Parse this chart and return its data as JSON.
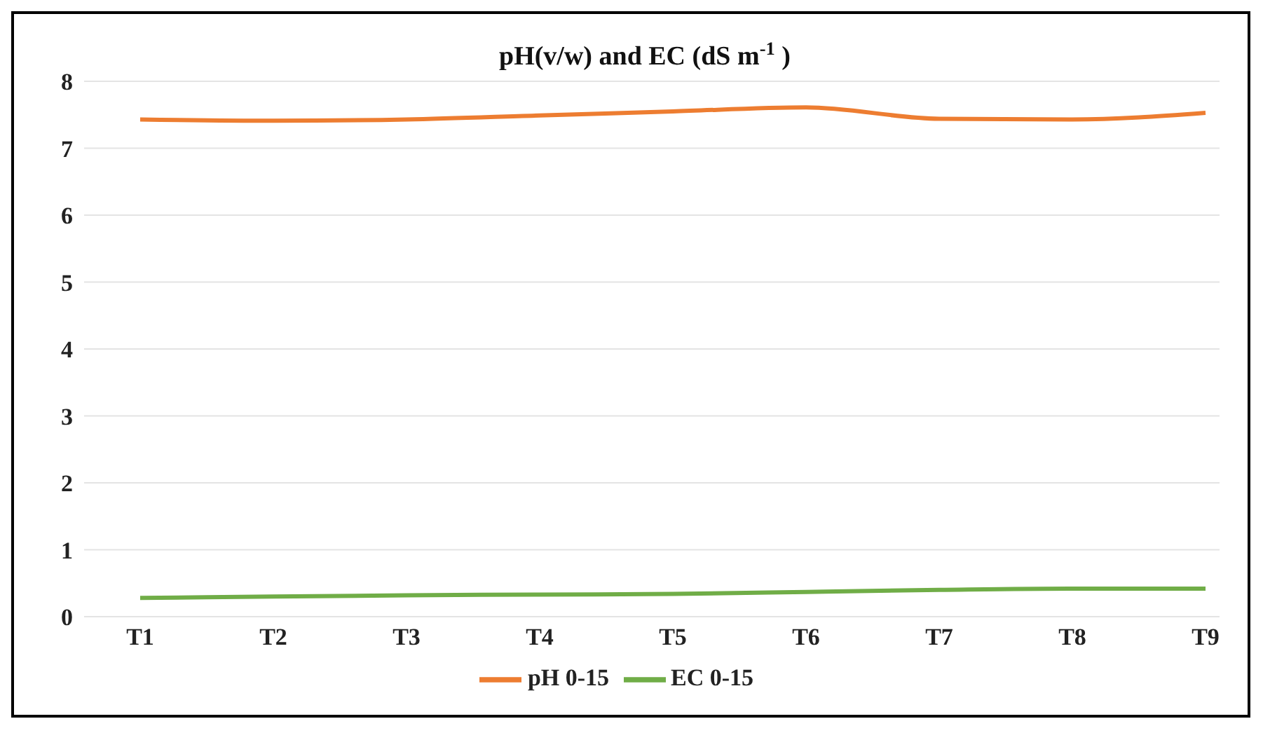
{
  "chart_data": {
    "type": "line",
    "title": "pH(v/w) and EC (dS m$^{-1}$)",
    "categories": [
      "T1",
      "T2",
      "T3",
      "T4",
      "T5",
      "T6",
      "T7",
      "T8",
      "T9"
    ],
    "series": [
      {
        "name": "pH 0-15",
        "color": "#ed7d31",
        "values": [
          7.43,
          7.41,
          7.43,
          7.49,
          7.55,
          7.61,
          7.44,
          7.43,
          7.53
        ]
      },
      {
        "name": "EC 0-15",
        "color": "#70ad47",
        "values": [
          0.28,
          0.3,
          0.32,
          0.33,
          0.34,
          0.37,
          0.4,
          0.42,
          0.42
        ]
      }
    ],
    "ylim": [
      0,
      8
    ],
    "yticks": [
      0,
      1,
      2,
      3,
      4,
      5,
      6,
      7,
      8
    ],
    "grid": "y",
    "legend": "bottom",
    "marker": "none",
    "line_style": "solid"
  }
}
